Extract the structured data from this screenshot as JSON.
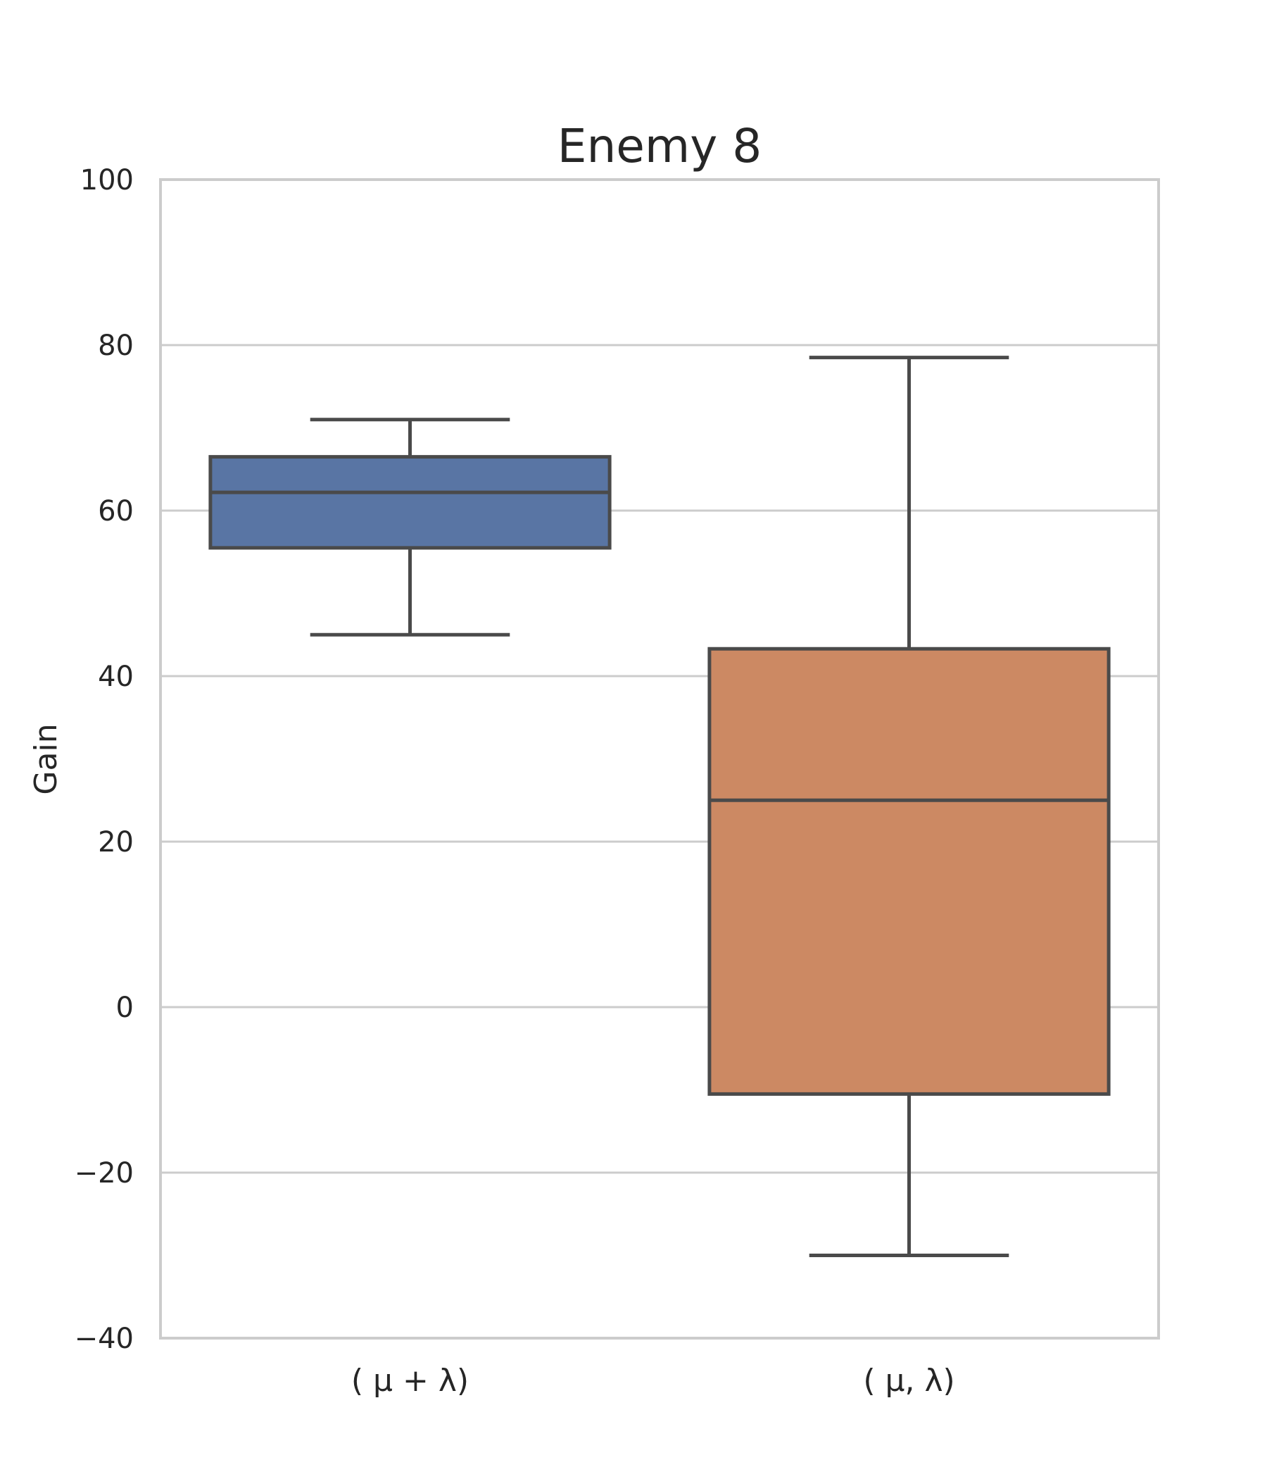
{
  "chart_data": {
    "type": "box",
    "title": "Enemy 8",
    "ylabel": "Gain",
    "xlabel": "",
    "ylim": [
      -40,
      100
    ],
    "yticks": [
      -40,
      -20,
      0,
      20,
      40,
      60,
      80,
      100
    ],
    "ytick_labels": [
      "−40",
      "−20",
      "0",
      "20",
      "40",
      "60",
      "80",
      "100"
    ],
    "grid": "horizontal",
    "categories": [
      "( μ + λ)",
      "( μ, λ)"
    ],
    "boxes": [
      {
        "category": "( μ + λ)",
        "whisker_low": 45,
        "q1": 55.5,
        "median": 62.2,
        "q3": 66.5,
        "whisker_high": 71,
        "color": "#5975a4"
      },
      {
        "category": "( μ, λ)",
        "whisker_low": -30,
        "q1": -10.5,
        "median": 25,
        "q3": 43.3,
        "whisker_high": 78.5,
        "color": "#cc8963"
      }
    ]
  }
}
